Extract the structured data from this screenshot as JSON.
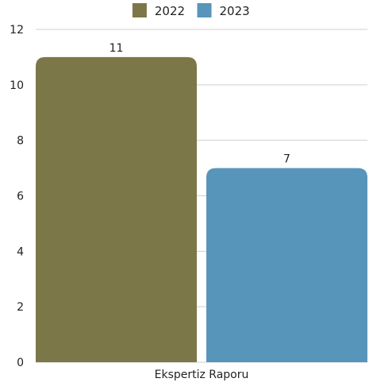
{
  "chart_data": {
    "type": "bar",
    "categories": [
      "Ekspertiz Raporu"
    ],
    "series": [
      {
        "name": "2022",
        "values": [
          11
        ],
        "color": "#7b7748"
      },
      {
        "name": "2023",
        "values": [
          7
        ],
        "color": "#5895bb"
      }
    ],
    "title": "",
    "xlabel": "",
    "ylabel": "",
    "ylim": [
      0,
      12
    ],
    "yticks": [
      0,
      2,
      4,
      6,
      8,
      10,
      12
    ],
    "grid": true,
    "legend_position": "top-center",
    "data_labels": true
  }
}
